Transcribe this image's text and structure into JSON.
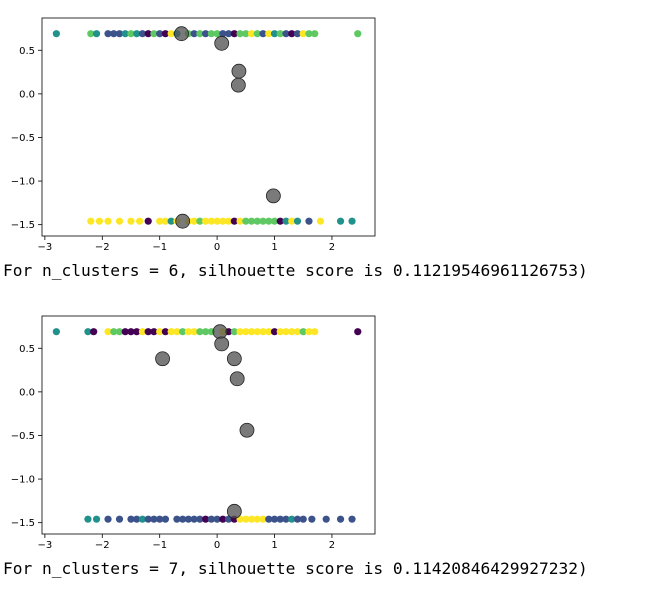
{
  "colors": {
    "purple": "#440154",
    "blue": "#3b528b",
    "teal": "#21918c",
    "green": "#5ec962",
    "yellow": "#fde725",
    "centroid": "#555555"
  },
  "chart_data": [
    {
      "type": "scatter",
      "title": "",
      "xlabel": "",
      "ylabel": "",
      "xlim": [
        -3.05,
        2.75
      ],
      "ylim": [
        -1.63,
        0.87
      ],
      "xticks": [
        -3,
        -2,
        -1,
        0,
        1,
        2
      ],
      "yticks": [
        -1.5,
        -1.0,
        -0.5,
        0.0,
        0.5
      ],
      "xtick_labels": [
        "−3",
        "−2",
        "−1",
        "0",
        "1",
        "2"
      ],
      "ytick_labels": [
        "−1.5",
        "−1.0",
        "−0.5",
        "0.0",
        "0.5"
      ],
      "grid": false,
      "points": [
        {
          "x": -2.8,
          "y": 0.69,
          "c": "teal"
        },
        {
          "x": -2.2,
          "y": 0.69,
          "c": "green"
        },
        {
          "x": -2.1,
          "y": 0.69,
          "c": "teal"
        },
        {
          "x": -1.9,
          "y": 0.69,
          "c": "blue"
        },
        {
          "x": -1.8,
          "y": 0.69,
          "c": "blue"
        },
        {
          "x": -1.7,
          "y": 0.69,
          "c": "blue"
        },
        {
          "x": -1.6,
          "y": 0.69,
          "c": "teal"
        },
        {
          "x": -1.5,
          "y": 0.69,
          "c": "green"
        },
        {
          "x": -1.4,
          "y": 0.69,
          "c": "teal"
        },
        {
          "x": -1.3,
          "y": 0.69,
          "c": "blue"
        },
        {
          "x": -1.2,
          "y": 0.69,
          "c": "purple"
        },
        {
          "x": -1.1,
          "y": 0.69,
          "c": "green"
        },
        {
          "x": -1.0,
          "y": 0.69,
          "c": "blue"
        },
        {
          "x": -0.9,
          "y": 0.69,
          "c": "purple"
        },
        {
          "x": -0.8,
          "y": 0.69,
          "c": "yellow"
        },
        {
          "x": -0.7,
          "y": 0.69,
          "c": "teal"
        },
        {
          "x": -0.5,
          "y": 0.69,
          "c": "green"
        },
        {
          "x": -0.4,
          "y": 0.69,
          "c": "blue"
        },
        {
          "x": -0.3,
          "y": 0.69,
          "c": "green"
        },
        {
          "x": -0.2,
          "y": 0.69,
          "c": "blue"
        },
        {
          "x": -0.1,
          "y": 0.69,
          "c": "green"
        },
        {
          "x": 0.0,
          "y": 0.69,
          "c": "green"
        },
        {
          "x": 0.1,
          "y": 0.69,
          "c": "blue"
        },
        {
          "x": 0.2,
          "y": 0.69,
          "c": "blue"
        },
        {
          "x": 0.3,
          "y": 0.69,
          "c": "purple"
        },
        {
          "x": 0.4,
          "y": 0.69,
          "c": "green"
        },
        {
          "x": 0.5,
          "y": 0.69,
          "c": "green"
        },
        {
          "x": 0.6,
          "y": 0.69,
          "c": "yellow"
        },
        {
          "x": 0.7,
          "y": 0.69,
          "c": "green"
        },
        {
          "x": 0.8,
          "y": 0.69,
          "c": "blue"
        },
        {
          "x": 0.9,
          "y": 0.69,
          "c": "yellow"
        },
        {
          "x": 1.0,
          "y": 0.69,
          "c": "teal"
        },
        {
          "x": 1.1,
          "y": 0.69,
          "c": "green"
        },
        {
          "x": 1.2,
          "y": 0.69,
          "c": "blue"
        },
        {
          "x": 1.3,
          "y": 0.69,
          "c": "purple"
        },
        {
          "x": 1.4,
          "y": 0.69,
          "c": "blue"
        },
        {
          "x": 1.5,
          "y": 0.69,
          "c": "yellow"
        },
        {
          "x": 1.6,
          "y": 0.69,
          "c": "green"
        },
        {
          "x": 1.7,
          "y": 0.69,
          "c": "green"
        },
        {
          "x": 2.45,
          "y": 0.69,
          "c": "green"
        },
        {
          "x": -2.2,
          "y": -1.46,
          "c": "yellow"
        },
        {
          "x": -2.05,
          "y": -1.46,
          "c": "yellow"
        },
        {
          "x": -1.9,
          "y": -1.46,
          "c": "yellow"
        },
        {
          "x": -1.7,
          "y": -1.46,
          "c": "yellow"
        },
        {
          "x": -1.5,
          "y": -1.46,
          "c": "yellow"
        },
        {
          "x": -1.35,
          "y": -1.46,
          "c": "yellow"
        },
        {
          "x": -1.2,
          "y": -1.46,
          "c": "purple"
        },
        {
          "x": -1.0,
          "y": -1.46,
          "c": "yellow"
        },
        {
          "x": -0.9,
          "y": -1.46,
          "c": "yellow"
        },
        {
          "x": -0.8,
          "y": -1.46,
          "c": "teal"
        },
        {
          "x": -0.7,
          "y": -1.46,
          "c": "yellow"
        },
        {
          "x": -0.5,
          "y": -1.46,
          "c": "yellow"
        },
        {
          "x": -0.4,
          "y": -1.46,
          "c": "yellow"
        },
        {
          "x": -0.3,
          "y": -1.46,
          "c": "green"
        },
        {
          "x": -0.2,
          "y": -1.46,
          "c": "yellow"
        },
        {
          "x": -0.1,
          "y": -1.46,
          "c": "yellow"
        },
        {
          "x": 0.0,
          "y": -1.46,
          "c": "yellow"
        },
        {
          "x": 0.1,
          "y": -1.46,
          "c": "yellow"
        },
        {
          "x": 0.2,
          "y": -1.46,
          "c": "yellow"
        },
        {
          "x": 0.3,
          "y": -1.46,
          "c": "purple"
        },
        {
          "x": 0.4,
          "y": -1.46,
          "c": "yellow"
        },
        {
          "x": 0.5,
          "y": -1.46,
          "c": "green"
        },
        {
          "x": 0.6,
          "y": -1.46,
          "c": "green"
        },
        {
          "x": 0.7,
          "y": -1.46,
          "c": "green"
        },
        {
          "x": 0.8,
          "y": -1.46,
          "c": "green"
        },
        {
          "x": 0.9,
          "y": -1.46,
          "c": "green"
        },
        {
          "x": 1.0,
          "y": -1.46,
          "c": "green"
        },
        {
          "x": 1.1,
          "y": -1.46,
          "c": "purple"
        },
        {
          "x": 1.2,
          "y": -1.46,
          "c": "teal"
        },
        {
          "x": 1.3,
          "y": -1.46,
          "c": "yellow"
        },
        {
          "x": 1.4,
          "y": -1.46,
          "c": "teal"
        },
        {
          "x": 1.6,
          "y": -1.46,
          "c": "blue"
        },
        {
          "x": 1.8,
          "y": -1.46,
          "c": "yellow"
        },
        {
          "x": 2.15,
          "y": -1.46,
          "c": "teal"
        },
        {
          "x": 2.35,
          "y": -1.46,
          "c": "teal"
        }
      ],
      "centroids": [
        {
          "x": -0.62,
          "y": 0.69
        },
        {
          "x": 0.08,
          "y": 0.58
        },
        {
          "x": 0.38,
          "y": 0.26
        },
        {
          "x": 0.37,
          "y": 0.1
        },
        {
          "x": 0.98,
          "y": -1.17
        },
        {
          "x": -0.6,
          "y": -1.46
        }
      ]
    },
    {
      "type": "scatter",
      "title": "",
      "xlabel": "",
      "ylabel": "",
      "xlim": [
        -3.05,
        2.75
      ],
      "ylim": [
        -1.63,
        0.87
      ],
      "xticks": [
        -3,
        -2,
        -1,
        0,
        1,
        2
      ],
      "yticks": [
        -1.5,
        -1.0,
        -0.5,
        0.0,
        0.5
      ],
      "xtick_labels": [
        "−3",
        "−2",
        "−1",
        "0",
        "1",
        "2"
      ],
      "ytick_labels": [
        "−1.5",
        "−1.0",
        "−0.5",
        "0.0",
        "0.5"
      ],
      "grid": false,
      "points": [
        {
          "x": -2.8,
          "y": 0.69,
          "c": "teal"
        },
        {
          "x": -2.25,
          "y": 0.69,
          "c": "teal"
        },
        {
          "x": -2.15,
          "y": 0.69,
          "c": "purple"
        },
        {
          "x": -1.9,
          "y": 0.69,
          "c": "yellow"
        },
        {
          "x": -1.8,
          "y": 0.69,
          "c": "green"
        },
        {
          "x": -1.7,
          "y": 0.69,
          "c": "green"
        },
        {
          "x": -1.6,
          "y": 0.69,
          "c": "purple"
        },
        {
          "x": -1.5,
          "y": 0.69,
          "c": "purple"
        },
        {
          "x": -1.4,
          "y": 0.69,
          "c": "purple"
        },
        {
          "x": -1.3,
          "y": 0.69,
          "c": "yellow"
        },
        {
          "x": -1.2,
          "y": 0.69,
          "c": "purple"
        },
        {
          "x": -1.1,
          "y": 0.69,
          "c": "purple"
        },
        {
          "x": -1.0,
          "y": 0.69,
          "c": "yellow"
        },
        {
          "x": -0.9,
          "y": 0.69,
          "c": "purple"
        },
        {
          "x": -0.8,
          "y": 0.69,
          "c": "yellow"
        },
        {
          "x": -0.7,
          "y": 0.69,
          "c": "yellow"
        },
        {
          "x": -0.6,
          "y": 0.69,
          "c": "green"
        },
        {
          "x": -0.5,
          "y": 0.69,
          "c": "yellow"
        },
        {
          "x": -0.4,
          "y": 0.69,
          "c": "yellow"
        },
        {
          "x": -0.3,
          "y": 0.69,
          "c": "green"
        },
        {
          "x": -0.2,
          "y": 0.69,
          "c": "green"
        },
        {
          "x": -0.1,
          "y": 0.69,
          "c": "green"
        },
        {
          "x": 0.1,
          "y": 0.69,
          "c": "yellow"
        },
        {
          "x": 0.2,
          "y": 0.69,
          "c": "purple"
        },
        {
          "x": 0.3,
          "y": 0.69,
          "c": "green"
        },
        {
          "x": 0.4,
          "y": 0.69,
          "c": "yellow"
        },
        {
          "x": 0.5,
          "y": 0.69,
          "c": "yellow"
        },
        {
          "x": 0.6,
          "y": 0.69,
          "c": "yellow"
        },
        {
          "x": 0.7,
          "y": 0.69,
          "c": "yellow"
        },
        {
          "x": 0.8,
          "y": 0.69,
          "c": "yellow"
        },
        {
          "x": 0.9,
          "y": 0.69,
          "c": "yellow"
        },
        {
          "x": 1.0,
          "y": 0.69,
          "c": "purple"
        },
        {
          "x": 1.1,
          "y": 0.69,
          "c": "yellow"
        },
        {
          "x": 1.2,
          "y": 0.69,
          "c": "yellow"
        },
        {
          "x": 1.3,
          "y": 0.69,
          "c": "yellow"
        },
        {
          "x": 1.4,
          "y": 0.69,
          "c": "yellow"
        },
        {
          "x": 1.5,
          "y": 0.69,
          "c": "green"
        },
        {
          "x": 1.6,
          "y": 0.69,
          "c": "yellow"
        },
        {
          "x": 1.7,
          "y": 0.69,
          "c": "yellow"
        },
        {
          "x": 2.45,
          "y": 0.69,
          "c": "purple"
        },
        {
          "x": -2.25,
          "y": -1.46,
          "c": "teal"
        },
        {
          "x": -2.1,
          "y": -1.46,
          "c": "teal"
        },
        {
          "x": -1.9,
          "y": -1.46,
          "c": "blue"
        },
        {
          "x": -1.7,
          "y": -1.46,
          "c": "blue"
        },
        {
          "x": -1.5,
          "y": -1.46,
          "c": "blue"
        },
        {
          "x": -1.4,
          "y": -1.46,
          "c": "blue"
        },
        {
          "x": -1.3,
          "y": -1.46,
          "c": "teal"
        },
        {
          "x": -1.2,
          "y": -1.46,
          "c": "blue"
        },
        {
          "x": -1.1,
          "y": -1.46,
          "c": "blue"
        },
        {
          "x": -1.0,
          "y": -1.46,
          "c": "blue"
        },
        {
          "x": -0.9,
          "y": -1.46,
          "c": "blue"
        },
        {
          "x": -0.7,
          "y": -1.46,
          "c": "blue"
        },
        {
          "x": -0.6,
          "y": -1.46,
          "c": "blue"
        },
        {
          "x": -0.5,
          "y": -1.46,
          "c": "blue"
        },
        {
          "x": -0.4,
          "y": -1.46,
          "c": "blue"
        },
        {
          "x": -0.3,
          "y": -1.46,
          "c": "blue"
        },
        {
          "x": -0.2,
          "y": -1.46,
          "c": "purple"
        },
        {
          "x": -0.1,
          "y": -1.46,
          "c": "blue"
        },
        {
          "x": 0.0,
          "y": -1.46,
          "c": "blue"
        },
        {
          "x": 0.1,
          "y": -1.46,
          "c": "purple"
        },
        {
          "x": 0.2,
          "y": -1.46,
          "c": "blue"
        },
        {
          "x": 0.3,
          "y": -1.46,
          "c": "purple"
        },
        {
          "x": 0.4,
          "y": -1.46,
          "c": "yellow"
        },
        {
          "x": 0.5,
          "y": -1.46,
          "c": "yellow"
        },
        {
          "x": 0.6,
          "y": -1.46,
          "c": "yellow"
        },
        {
          "x": 0.7,
          "y": -1.46,
          "c": "yellow"
        },
        {
          "x": 0.8,
          "y": -1.46,
          "c": "yellow"
        },
        {
          "x": 0.9,
          "y": -1.46,
          "c": "blue"
        },
        {
          "x": 1.0,
          "y": -1.46,
          "c": "blue"
        },
        {
          "x": 1.1,
          "y": -1.46,
          "c": "blue"
        },
        {
          "x": 1.2,
          "y": -1.46,
          "c": "blue"
        },
        {
          "x": 1.3,
          "y": -1.46,
          "c": "teal"
        },
        {
          "x": 1.4,
          "y": -1.46,
          "c": "blue"
        },
        {
          "x": 1.5,
          "y": -1.46,
          "c": "blue"
        },
        {
          "x": 1.65,
          "y": -1.46,
          "c": "blue"
        },
        {
          "x": 1.9,
          "y": -1.46,
          "c": "blue"
        },
        {
          "x": 2.15,
          "y": -1.46,
          "c": "blue"
        },
        {
          "x": 2.35,
          "y": -1.46,
          "c": "blue"
        }
      ],
      "centroids": [
        {
          "x": 0.05,
          "y": 0.69
        },
        {
          "x": 0.08,
          "y": 0.55
        },
        {
          "x": -0.95,
          "y": 0.38
        },
        {
          "x": 0.3,
          "y": 0.38
        },
        {
          "x": 0.35,
          "y": 0.15
        },
        {
          "x": 0.52,
          "y": -0.44
        },
        {
          "x": 0.3,
          "y": -1.37
        }
      ]
    }
  ],
  "captions": [
    "For n_clusters = 6, silhouette score is 0.11219546961126753)",
    "For n_clusters = 7, silhouette score is 0.11420846429927232)"
  ]
}
